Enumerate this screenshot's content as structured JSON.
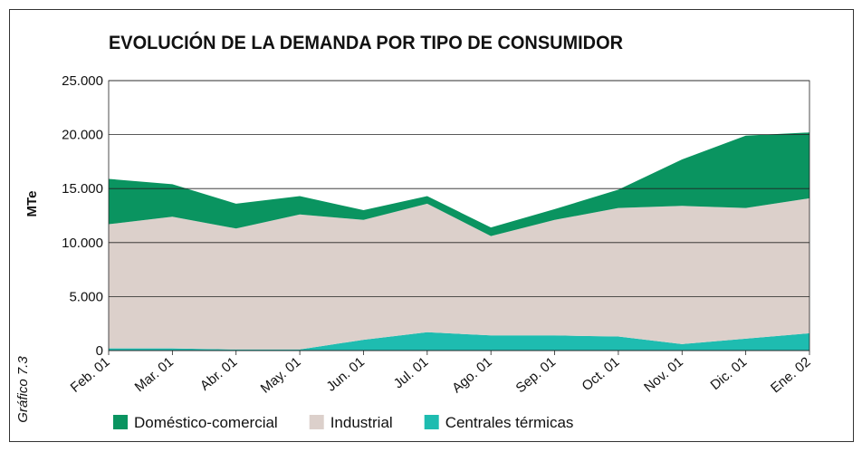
{
  "chart_data": {
    "type": "stacked_area",
    "title": "EVOLUCIÓN DE LA DEMANDA POR TIPO DE CONSUMIDOR",
    "ylabel": "MTe",
    "side_label": "Gráfico 7.3",
    "categories": [
      "Feb. 01",
      "Mar. 01",
      "Abr. 01",
      "May. 01",
      "Jun. 01",
      "Jul. 01",
      "Ago. 01",
      "Sep. 01",
      "Oct. 01",
      "Nov. 01",
      "Dic. 01",
      "Ene. 02"
    ],
    "series": [
      {
        "name": "Doméstico-comercial",
        "color": "#0a9460",
        "values": [
          4200,
          3000,
          2300,
          1700,
          900,
          700,
          800,
          1000,
          1700,
          4300,
          6700,
          6100
        ]
      },
      {
        "name": "Industrial",
        "color": "#dcd0cb",
        "values": [
          11500,
          12200,
          11200,
          12500,
          11100,
          11900,
          9200,
          10700,
          11900,
          12800,
          12100,
          12500
        ]
      },
      {
        "name": "Centrales térmicas",
        "color": "#1ebcb0",
        "values": [
          200,
          200,
          100,
          100,
          1000,
          1700,
          1400,
          1400,
          1300,
          600,
          1100,
          1600
        ]
      }
    ],
    "stack_order": "bottom-last",
    "ylim": [
      0,
      25000
    ],
    "yticks": [
      0,
      {
        "value": 5000,
        "label": "5.000"
      },
      {
        "value": 10000,
        "label": "10.000"
      },
      {
        "value": 15000,
        "label": "15.000"
      },
      {
        "value": 20000,
        "label": "20.000"
      },
      {
        "value": 25000,
        "label": "25.000"
      }
    ],
    "grid": true
  }
}
